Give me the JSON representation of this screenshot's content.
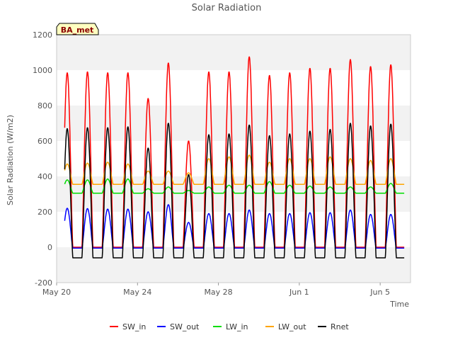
{
  "chart_data": {
    "type": "line",
    "title": "Solar Radiation",
    "xlabel": "Time",
    "ylabel": "Solar Radiation (W/m2)",
    "ylim": [
      -200,
      1200
    ],
    "yticks": [
      -200,
      0,
      200,
      400,
      600,
      800,
      1000,
      1200
    ],
    "xlim_days": [
      20.0,
      37.5
    ],
    "xticks": [
      {
        "label": "May 20",
        "day": 20
      },
      {
        "label": "May 24",
        "day": 24
      },
      {
        "label": "May 28",
        "day": 28
      },
      {
        "label": "Jun 1",
        "day": 32
      },
      {
        "label": "Jun 5",
        "day": 36
      }
    ],
    "annotation": "BA_met",
    "grid": "horizontal bands",
    "legend_position": "bottom",
    "colors": {
      "SW_in": "#ff0000",
      "SW_out": "#0000ff",
      "LW_in": "#00dd00",
      "LW_out": "#ffa500",
      "Rnet": "#000000"
    },
    "days": [
      "May 20",
      "May 21",
      "May 22",
      "May 23",
      "May 24",
      "May 25",
      "May 26",
      "May 27",
      "May 28",
      "May 29",
      "May 30",
      "May 31",
      "Jun 1",
      "Jun 2",
      "Jun 3",
      "Jun 4",
      "Jun 5",
      "Jun 6"
    ],
    "series": [
      {
        "name": "SW_in",
        "daily_peak": [
          985,
          990,
          985,
          985,
          840,
          1040,
          600,
          990,
          990,
          1075,
          970,
          985,
          1010,
          1010,
          1060,
          1020,
          1030,
          0
        ],
        "night": 0
      },
      {
        "name": "SW_out",
        "daily_peak": [
          220,
          218,
          215,
          215,
          200,
          240,
          140,
          190,
          190,
          210,
          190,
          190,
          195,
          195,
          210,
          185,
          185,
          0
        ],
        "night": -5
      },
      {
        "name": "LW_in",
        "daily_peak": [
          380,
          380,
          385,
          385,
          330,
          340,
          320,
          340,
          350,
          350,
          370,
          350,
          345,
          340,
          340,
          340,
          360,
          0
        ],
        "night": 305
      },
      {
        "name": "LW_out",
        "daily_peak": [
          470,
          475,
          480,
          470,
          430,
          430,
          420,
          500,
          510,
          520,
          480,
          500,
          500,
          510,
          500,
          490,
          500,
          0
        ],
        "night": 355
      },
      {
        "name": "Rnet",
        "daily_peak": [
          670,
          675,
          675,
          680,
          560,
          700,
          410,
          635,
          640,
          690,
          630,
          640,
          655,
          665,
          700,
          685,
          695,
          0
        ],
        "night": -60
      }
    ]
  }
}
